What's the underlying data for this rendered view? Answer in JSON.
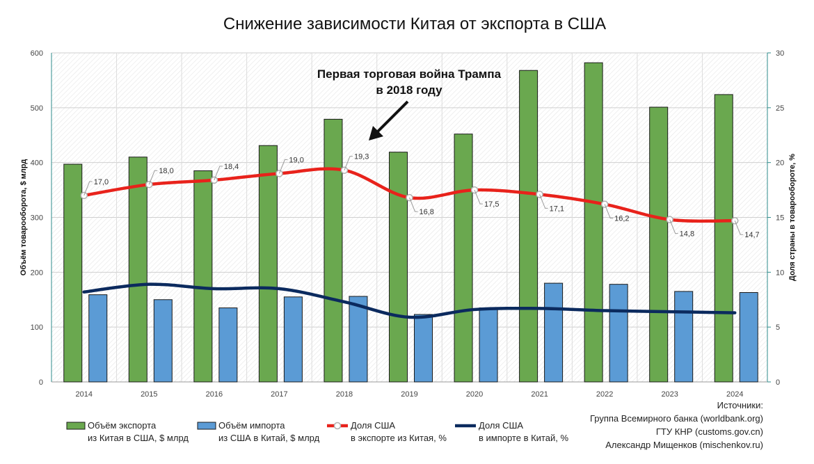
{
  "chart_data": {
    "type": "bar",
    "title": "Снижение зависимости Китая от экспорта в США",
    "categories": [
      "2014",
      "2015",
      "2016",
      "2017",
      "2018",
      "2019",
      "2020",
      "2021",
      "2022",
      "2023",
      "2024"
    ],
    "ylabel": "Объём товарооборота, $ млрд",
    "y2label": "Доля страны в товарообороте, %",
    "ylim": [
      0,
      600
    ],
    "y2lim": [
      0,
      30
    ],
    "yticks": [
      "0",
      "100",
      "200",
      "300",
      "400",
      "500",
      "600"
    ],
    "y2ticks": [
      "0",
      "5",
      "10",
      "15",
      "20",
      "25",
      "30"
    ],
    "grid": true,
    "series": [
      {
        "name": "Объём экспорта из Китая в США, $ млрд",
        "legend_line1": "Объём экспорта",
        "legend_line2": "из Китая в США, $ млрд",
        "type": "bar",
        "axis": "left",
        "color": "#6aa84f",
        "values": [
          397,
          410,
          385,
          431,
          479,
          419,
          452,
          568,
          582,
          501,
          524
        ]
      },
      {
        "name": "Объём импорта из США в Китай, $ млрд",
        "legend_line1": "Объём импорта",
        "legend_line2": "из США в Китай, $ млрд",
        "type": "bar",
        "axis": "left",
        "color": "#5b9bd5",
        "values": [
          159,
          150,
          135,
          155,
          156,
          123,
          135,
          180,
          178,
          165,
          163
        ]
      },
      {
        "name": "Доля США в экспорте из Китая, %",
        "legend_line1": "Доля США",
        "legend_line2": "в экспорте из Китая, %",
        "type": "line",
        "axis": "right",
        "color": "#e8221b",
        "values": [
          17.0,
          18.0,
          18.4,
          19.0,
          19.3,
          16.8,
          17.5,
          17.1,
          16.2,
          14.8,
          14.7
        ],
        "labels": [
          "17,0",
          "18,0",
          "18,4",
          "19,0",
          "19,3",
          "16,8",
          "17,5",
          "17,1",
          "16,2",
          "14,8",
          "14,7"
        ]
      },
      {
        "name": "Доля США в импорте в Китай, %",
        "legend_line1": "Доля США",
        "legend_line2": "в импорте в Китай, %",
        "type": "line",
        "axis": "right",
        "color": "#0b2a5e",
        "values": [
          8.2,
          8.9,
          8.5,
          8.5,
          7.3,
          5.9,
          6.6,
          6.7,
          6.5,
          6.4,
          6.3
        ]
      }
    ],
    "annotation": {
      "line1": "Первая торговая война Трампа",
      "line2": "в 2018 году"
    }
  },
  "sources": {
    "heading": "Источники:",
    "lines": [
      "Группа Всемирного банка (worldbank.org)",
      "ГТУ КНР (customs.gov.cn)",
      "Александр Мищенков (mischenkov.ru)"
    ]
  }
}
